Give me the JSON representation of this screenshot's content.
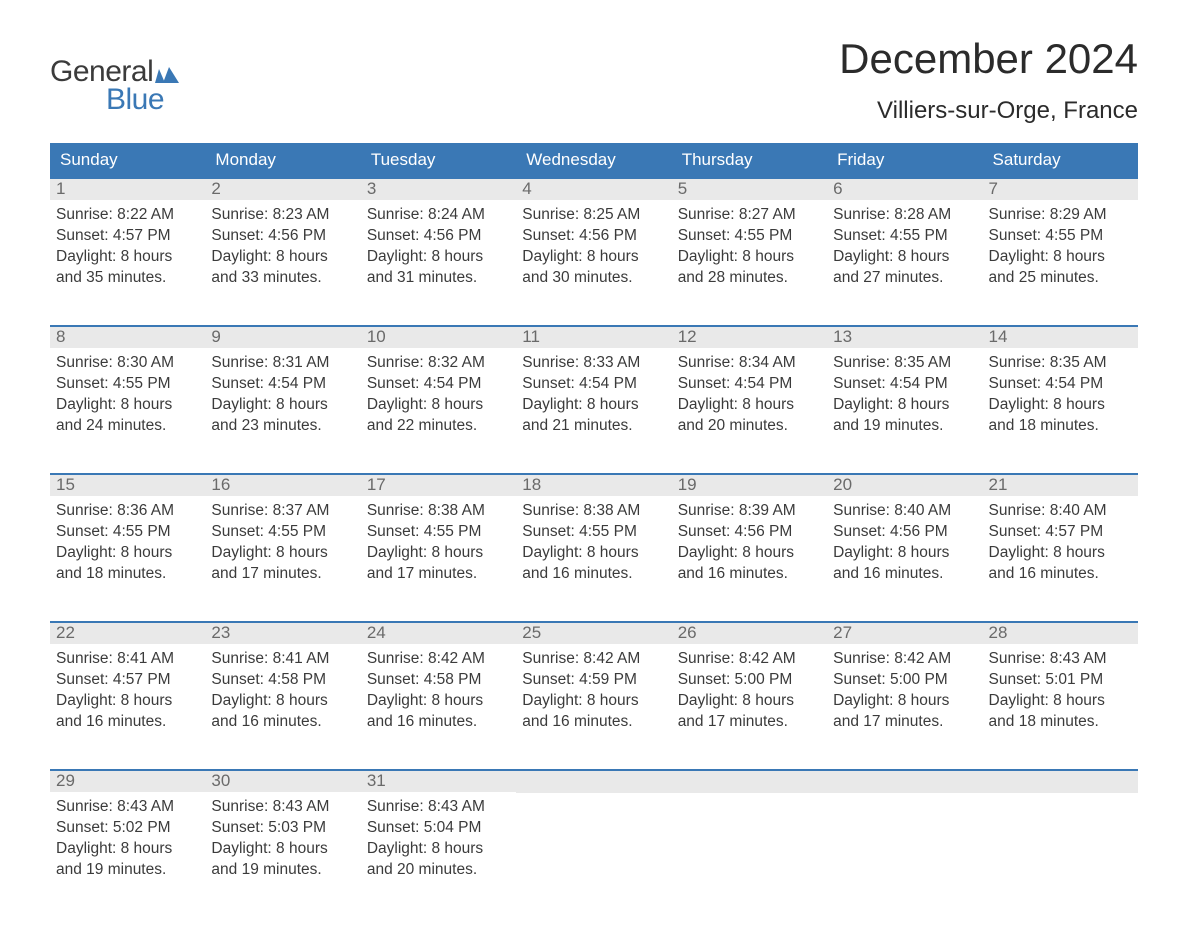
{
  "logo": {
    "text_top": "General",
    "text_bottom": "Blue",
    "accent_color": "#3a78b5"
  },
  "header": {
    "month_title": "December 2024",
    "location": "Villiers-sur-Orge, France"
  },
  "colors": {
    "header_bg": "#3a78b5",
    "daynum_bg": "#e9e9e9",
    "text": "#3b3b3b",
    "background": "#ffffff"
  },
  "days_of_week": [
    "Sunday",
    "Monday",
    "Tuesday",
    "Wednesday",
    "Thursday",
    "Friday",
    "Saturday"
  ],
  "weeks": [
    [
      {
        "num": "1",
        "sunrise": "Sunrise: 8:22 AM",
        "sunset": "Sunset: 4:57 PM",
        "dl1": "Daylight: 8 hours",
        "dl2": "and 35 minutes."
      },
      {
        "num": "2",
        "sunrise": "Sunrise: 8:23 AM",
        "sunset": "Sunset: 4:56 PM",
        "dl1": "Daylight: 8 hours",
        "dl2": "and 33 minutes."
      },
      {
        "num": "3",
        "sunrise": "Sunrise: 8:24 AM",
        "sunset": "Sunset: 4:56 PM",
        "dl1": "Daylight: 8 hours",
        "dl2": "and 31 minutes."
      },
      {
        "num": "4",
        "sunrise": "Sunrise: 8:25 AM",
        "sunset": "Sunset: 4:56 PM",
        "dl1": "Daylight: 8 hours",
        "dl2": "and 30 minutes."
      },
      {
        "num": "5",
        "sunrise": "Sunrise: 8:27 AM",
        "sunset": "Sunset: 4:55 PM",
        "dl1": "Daylight: 8 hours",
        "dl2": "and 28 minutes."
      },
      {
        "num": "6",
        "sunrise": "Sunrise: 8:28 AM",
        "sunset": "Sunset: 4:55 PM",
        "dl1": "Daylight: 8 hours",
        "dl2": "and 27 minutes."
      },
      {
        "num": "7",
        "sunrise": "Sunrise: 8:29 AM",
        "sunset": "Sunset: 4:55 PM",
        "dl1": "Daylight: 8 hours",
        "dl2": "and 25 minutes."
      }
    ],
    [
      {
        "num": "8",
        "sunrise": "Sunrise: 8:30 AM",
        "sunset": "Sunset: 4:55 PM",
        "dl1": "Daylight: 8 hours",
        "dl2": "and 24 minutes."
      },
      {
        "num": "9",
        "sunrise": "Sunrise: 8:31 AM",
        "sunset": "Sunset: 4:54 PM",
        "dl1": "Daylight: 8 hours",
        "dl2": "and 23 minutes."
      },
      {
        "num": "10",
        "sunrise": "Sunrise: 8:32 AM",
        "sunset": "Sunset: 4:54 PM",
        "dl1": "Daylight: 8 hours",
        "dl2": "and 22 minutes."
      },
      {
        "num": "11",
        "sunrise": "Sunrise: 8:33 AM",
        "sunset": "Sunset: 4:54 PM",
        "dl1": "Daylight: 8 hours",
        "dl2": "and 21 minutes."
      },
      {
        "num": "12",
        "sunrise": "Sunrise: 8:34 AM",
        "sunset": "Sunset: 4:54 PM",
        "dl1": "Daylight: 8 hours",
        "dl2": "and 20 minutes."
      },
      {
        "num": "13",
        "sunrise": "Sunrise: 8:35 AM",
        "sunset": "Sunset: 4:54 PM",
        "dl1": "Daylight: 8 hours",
        "dl2": "and 19 minutes."
      },
      {
        "num": "14",
        "sunrise": "Sunrise: 8:35 AM",
        "sunset": "Sunset: 4:54 PM",
        "dl1": "Daylight: 8 hours",
        "dl2": "and 18 minutes."
      }
    ],
    [
      {
        "num": "15",
        "sunrise": "Sunrise: 8:36 AM",
        "sunset": "Sunset: 4:55 PM",
        "dl1": "Daylight: 8 hours",
        "dl2": "and 18 minutes."
      },
      {
        "num": "16",
        "sunrise": "Sunrise: 8:37 AM",
        "sunset": "Sunset: 4:55 PM",
        "dl1": "Daylight: 8 hours",
        "dl2": "and 17 minutes."
      },
      {
        "num": "17",
        "sunrise": "Sunrise: 8:38 AM",
        "sunset": "Sunset: 4:55 PM",
        "dl1": "Daylight: 8 hours",
        "dl2": "and 17 minutes."
      },
      {
        "num": "18",
        "sunrise": "Sunrise: 8:38 AM",
        "sunset": "Sunset: 4:55 PM",
        "dl1": "Daylight: 8 hours",
        "dl2": "and 16 minutes."
      },
      {
        "num": "19",
        "sunrise": "Sunrise: 8:39 AM",
        "sunset": "Sunset: 4:56 PM",
        "dl1": "Daylight: 8 hours",
        "dl2": "and 16 minutes."
      },
      {
        "num": "20",
        "sunrise": "Sunrise: 8:40 AM",
        "sunset": "Sunset: 4:56 PM",
        "dl1": "Daylight: 8 hours",
        "dl2": "and 16 minutes."
      },
      {
        "num": "21",
        "sunrise": "Sunrise: 8:40 AM",
        "sunset": "Sunset: 4:57 PM",
        "dl1": "Daylight: 8 hours",
        "dl2": "and 16 minutes."
      }
    ],
    [
      {
        "num": "22",
        "sunrise": "Sunrise: 8:41 AM",
        "sunset": "Sunset: 4:57 PM",
        "dl1": "Daylight: 8 hours",
        "dl2": "and 16 minutes."
      },
      {
        "num": "23",
        "sunrise": "Sunrise: 8:41 AM",
        "sunset": "Sunset: 4:58 PM",
        "dl1": "Daylight: 8 hours",
        "dl2": "and 16 minutes."
      },
      {
        "num": "24",
        "sunrise": "Sunrise: 8:42 AM",
        "sunset": "Sunset: 4:58 PM",
        "dl1": "Daylight: 8 hours",
        "dl2": "and 16 minutes."
      },
      {
        "num": "25",
        "sunrise": "Sunrise: 8:42 AM",
        "sunset": "Sunset: 4:59 PM",
        "dl1": "Daylight: 8 hours",
        "dl2": "and 16 minutes."
      },
      {
        "num": "26",
        "sunrise": "Sunrise: 8:42 AM",
        "sunset": "Sunset: 5:00 PM",
        "dl1": "Daylight: 8 hours",
        "dl2": "and 17 minutes."
      },
      {
        "num": "27",
        "sunrise": "Sunrise: 8:42 AM",
        "sunset": "Sunset: 5:00 PM",
        "dl1": "Daylight: 8 hours",
        "dl2": "and 17 minutes."
      },
      {
        "num": "28",
        "sunrise": "Sunrise: 8:43 AM",
        "sunset": "Sunset: 5:01 PM",
        "dl1": "Daylight: 8 hours",
        "dl2": "and 18 minutes."
      }
    ],
    [
      {
        "num": "29",
        "sunrise": "Sunrise: 8:43 AM",
        "sunset": "Sunset: 5:02 PM",
        "dl1": "Daylight: 8 hours",
        "dl2": "and 19 minutes."
      },
      {
        "num": "30",
        "sunrise": "Sunrise: 8:43 AM",
        "sunset": "Sunset: 5:03 PM",
        "dl1": "Daylight: 8 hours",
        "dl2": "and 19 minutes."
      },
      {
        "num": "31",
        "sunrise": "Sunrise: 8:43 AM",
        "sunset": "Sunset: 5:04 PM",
        "dl1": "Daylight: 8 hours",
        "dl2": "and 20 minutes."
      },
      {
        "empty": true
      },
      {
        "empty": true
      },
      {
        "empty": true
      },
      {
        "empty": true
      }
    ]
  ]
}
